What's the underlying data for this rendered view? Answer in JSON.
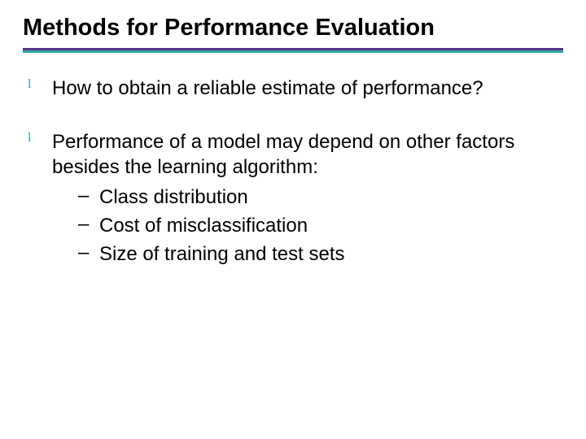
{
  "title": "Methods for Performance Evaluation",
  "title_fontsize": 29,
  "rule": {
    "top_color": "#5a338a",
    "bottom_color": "#2aa7a0"
  },
  "bullet_marker": {
    "glyph": "l",
    "color": "#2aa7a0",
    "fontsize": 16
  },
  "body_fontsize": 24,
  "bullets": [
    {
      "text": "How to obtain a reliable estimate of performance?"
    },
    {
      "text": "Performance of a model may depend on other factors besides the learning algorithm:",
      "sub": [
        "Class distribution",
        "Cost of misclassification",
        "Size of training and test sets"
      ]
    }
  ],
  "dash": "–"
}
